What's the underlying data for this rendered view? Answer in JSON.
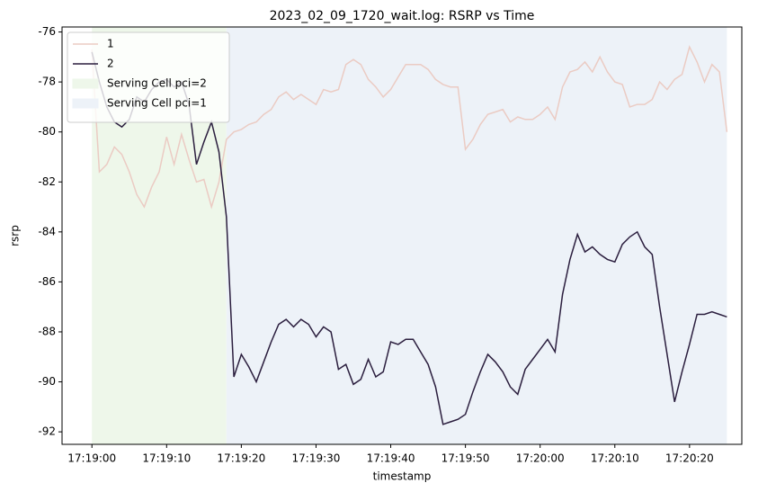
{
  "chart_data": {
    "type": "line",
    "title": "2023_02_09_1720_wait.log: RSRP vs Time",
    "xlabel": "timestamp",
    "ylabel": "rsrp",
    "x": [
      "17:19:00",
      "17:19:01",
      "17:19:02",
      "17:19:03",
      "17:19:04",
      "17:19:05",
      "17:19:06",
      "17:19:07",
      "17:19:08",
      "17:19:09",
      "17:19:10",
      "17:19:11",
      "17:19:12",
      "17:19:13",
      "17:19:14",
      "17:19:15",
      "17:19:16",
      "17:19:17",
      "17:19:18",
      "17:19:19",
      "17:19:20",
      "17:19:21",
      "17:19:22",
      "17:19:23",
      "17:19:24",
      "17:19:25",
      "17:19:26",
      "17:19:27",
      "17:19:28",
      "17:19:29",
      "17:19:30",
      "17:19:31",
      "17:19:32",
      "17:19:33",
      "17:19:34",
      "17:19:35",
      "17:19:36",
      "17:19:37",
      "17:19:38",
      "17:19:39",
      "17:19:40",
      "17:19:41",
      "17:19:42",
      "17:19:43",
      "17:19:44",
      "17:19:45",
      "17:19:46",
      "17:19:47",
      "17:19:48",
      "17:19:49",
      "17:19:50",
      "17:19:51",
      "17:19:52",
      "17:19:53",
      "17:19:54",
      "17:19:55",
      "17:19:56",
      "17:19:57",
      "17:19:58",
      "17:19:59",
      "17:20:00",
      "17:20:01",
      "17:20:02",
      "17:20:03",
      "17:20:04",
      "17:20:05",
      "17:20:06",
      "17:20:07",
      "17:20:08",
      "17:20:09",
      "17:20:10",
      "17:20:11",
      "17:20:12",
      "17:20:13",
      "17:20:14",
      "17:20:15",
      "17:20:16",
      "17:20:17",
      "17:20:18",
      "17:20:19",
      "17:20:20",
      "17:20:21",
      "17:20:22",
      "17:20:23",
      "17:20:24",
      "17:20:25"
    ],
    "series": [
      {
        "name": "1",
        "color": "#ebcbc3",
        "values": [
          -76.7,
          -81.6,
          -81.3,
          -80.6,
          -80.9,
          -81.6,
          -82.5,
          -83.0,
          -82.2,
          -81.6,
          -80.2,
          -81.3,
          -80.1,
          -81.1,
          -82.0,
          -81.9,
          -83.0,
          -82.0,
          -80.3,
          -80.0,
          -79.9,
          -79.7,
          -79.6,
          -79.3,
          -79.1,
          -78.6,
          -78.4,
          -78.7,
          -78.5,
          -78.7,
          -78.9,
          -78.3,
          -78.4,
          -78.3,
          -77.3,
          -77.1,
          -77.3,
          -77.9,
          -78.2,
          -78.6,
          -78.3,
          -77.8,
          -77.3,
          -77.3,
          -77.3,
          -77.5,
          -77.9,
          -78.1,
          -78.2,
          -78.2,
          -80.7,
          -80.3,
          -79.7,
          -79.3,
          -79.2,
          -79.1,
          -79.6,
          -79.4,
          -79.5,
          -79.5,
          -79.3,
          -79.0,
          -79.5,
          -78.2,
          -77.6,
          -77.5,
          -77.2,
          -77.6,
          -77.0,
          -77.6,
          -78.0,
          -78.1,
          -79.0,
          -78.9,
          -78.9,
          -78.7,
          -78.0,
          -78.3,
          -77.9,
          -77.7,
          -76.6,
          -77.2,
          -78.0,
          -77.3,
          -77.6,
          -80.0
        ]
      },
      {
        "name": "2",
        "color": "#2b1e3e",
        "values": [
          -76.8,
          -78.0,
          -79.0,
          -79.6,
          -79.8,
          -79.5,
          -78.6,
          -78.8,
          -78.3,
          -78.0,
          -77.9,
          -78.2,
          -78.0,
          -78.9,
          -81.3,
          -80.4,
          -79.6,
          -80.8,
          -83.4,
          -89.8,
          -88.9,
          -89.4,
          -90.0,
          -89.2,
          -88.4,
          -87.7,
          -87.5,
          -87.8,
          -87.5,
          -87.7,
          -88.2,
          -87.8,
          -88.0,
          -89.5,
          -89.3,
          -90.1,
          -89.9,
          -89.1,
          -89.8,
          -89.6,
          -88.4,
          -88.5,
          -88.3,
          -88.3,
          -88.8,
          -89.3,
          -90.2,
          -91.7,
          -91.6,
          -91.5,
          -91.3,
          -90.4,
          -89.6,
          -88.9,
          -89.2,
          -89.6,
          -90.2,
          -90.5,
          -89.5,
          -89.1,
          -88.7,
          -88.3,
          -88.8,
          -86.5,
          -85.1,
          -84.1,
          -84.8,
          -84.6,
          -84.9,
          -85.1,
          -85.2,
          -84.5,
          -84.2,
          -84.0,
          -84.6,
          -84.9,
          -87.0,
          -88.9,
          -90.8,
          -89.6,
          -88.5,
          -87.3,
          -87.3,
          -87.2,
          -87.3,
          -87.4
        ]
      }
    ],
    "spans": [
      {
        "name": "Serving Cell pci=2",
        "color": "#eef7ea",
        "start": "17:19:00",
        "end": "17:19:18"
      },
      {
        "name": "Serving Cell pci=1",
        "color": "#edf2f8",
        "start": "17:19:18",
        "end": "17:20:25"
      }
    ],
    "xlim": [
      "17:18:56",
      "17:20:27"
    ],
    "xticks": [
      "17:19:00",
      "17:19:10",
      "17:19:20",
      "17:19:30",
      "17:19:40",
      "17:19:50",
      "17:20:00",
      "17:20:10",
      "17:20:20"
    ],
    "ylim": [
      -92.5,
      -75.8
    ],
    "yticks": [
      -76,
      -78,
      -80,
      -82,
      -84,
      -86,
      -88,
      -90,
      -92
    ],
    "grid": false,
    "legend": "upper left"
  }
}
